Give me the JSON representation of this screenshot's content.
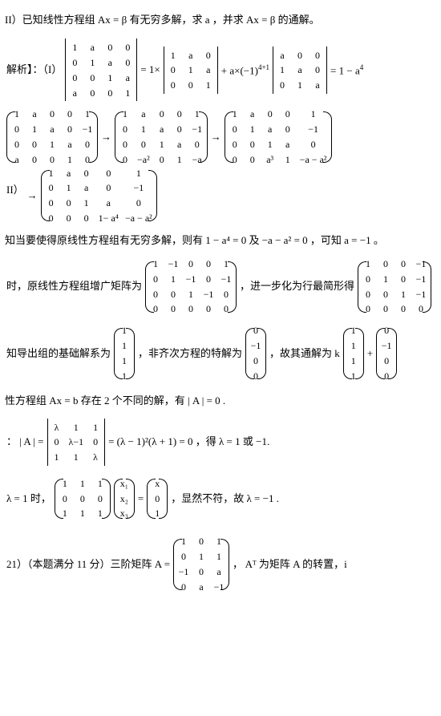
{
  "p1": "II）已知线性方程组 Ax = β 有无穷多解，求 a ，并求 Ax = β 的通解。",
  "p2a": "解析】：（I）",
  "p2b": "= 1×",
  "p2c": "+ a×(−1)",
  "p2c_sup": "4+1",
  "p2d": "= 1 − a",
  "p2d_sup": "4",
  "M1": [
    [
      "1",
      "a",
      "0",
      "0"
    ],
    [
      "0",
      "1",
      "a",
      "0"
    ],
    [
      "0",
      "0",
      "1",
      "a"
    ],
    [
      "a",
      "0",
      "0",
      "1"
    ]
  ],
  "M2": [
    [
      "1",
      "a",
      "0"
    ],
    [
      "0",
      "1",
      "a"
    ],
    [
      "0",
      "0",
      "1"
    ]
  ],
  "M3": [
    [
      "a",
      "0",
      "0"
    ],
    [
      "1",
      "a",
      "0"
    ],
    [
      "0",
      "1",
      "a"
    ]
  ],
  "p3": "II）",
  "arrow": "→",
  "A1": [
    [
      "1",
      "a",
      "0",
      "0",
      "1"
    ],
    [
      "0",
      "1",
      "a",
      "0",
      "−1"
    ],
    [
      "0",
      "0",
      "1",
      "a",
      "0"
    ],
    [
      "a",
      "0",
      "0",
      "1",
      "0"
    ]
  ],
  "A2": [
    [
      "1",
      "a",
      "0",
      "0",
      "1"
    ],
    [
      "0",
      "1",
      "a",
      "0",
      "−1"
    ],
    [
      "0",
      "0",
      "1",
      "a",
      "0"
    ],
    [
      "0",
      "−a²",
      "0",
      "1",
      "−a"
    ]
  ],
  "A3": [
    [
      "1",
      "a",
      "0",
      "0",
      "1"
    ],
    [
      "0",
      "1",
      "a",
      "0",
      "−1"
    ],
    [
      "0",
      "0",
      "1",
      "a",
      "0"
    ],
    [
      "0",
      "0",
      "a³",
      "1",
      "−a − a²"
    ]
  ],
  "A4": [
    [
      "1",
      "a",
      "0",
      "0",
      "1"
    ],
    [
      "0",
      "1",
      "a",
      "0",
      "−1"
    ],
    [
      "0",
      "0",
      "1",
      "a",
      "0"
    ],
    [
      "0",
      "0",
      "0",
      "1− a⁴",
      "−a − a²"
    ]
  ],
  "p4": "知当要使得原线性方程组有无穷多解，则有 1 − a⁴ = 0 及 −a − a² = 0 ，可知 a = −1 。",
  "p5a": "时，原线性方程组增广矩阵为",
  "p5b": "，进一步化为行最简形得",
  "B1": [
    [
      "1",
      "−1",
      "0",
      "0",
      "1"
    ],
    [
      "0",
      "1",
      "−1",
      "0",
      "−1"
    ],
    [
      "0",
      "0",
      "1",
      "−1",
      "0"
    ],
    [
      "0",
      "0",
      "0",
      "0",
      "0"
    ]
  ],
  "B2": [
    [
      "1",
      "0",
      "0",
      "−1"
    ],
    [
      "0",
      "1",
      "0",
      "−1"
    ],
    [
      "0",
      "0",
      "1",
      "−1"
    ],
    [
      "0",
      "0",
      "0",
      "0"
    ]
  ],
  "p6a": "知导出组的基础解系为",
  "p6b": "，非齐次方程的特解为",
  "p6c": "，故其通解为 k",
  "p6d": "+",
  "V1": [
    [
      "1"
    ],
    [
      "1"
    ],
    [
      "1"
    ],
    [
      "1"
    ]
  ],
  "V2": [
    [
      "0"
    ],
    [
      "−1"
    ],
    [
      "0"
    ],
    [
      "0"
    ]
  ],
  "V3": [
    [
      "1"
    ],
    [
      "1"
    ],
    [
      "1"
    ],
    [
      "1"
    ]
  ],
  "V4": [
    [
      "0"
    ],
    [
      "−1"
    ],
    [
      "0"
    ],
    [
      "0"
    ]
  ],
  "p7": "性方程组 Ax = b 存在 2 个不同的解，有 | A | = 0 .",
  "p8a": "：   | A | =",
  "p8b": "= (λ − 1)²(λ + 1) = 0 ，得 λ = 1 或 −1.",
  "D1": [
    [
      "λ",
      "1",
      "1"
    ],
    [
      "0",
      "λ−1",
      "0"
    ],
    [
      "1",
      "1",
      "λ"
    ]
  ],
  "p9a": "λ = 1 时，",
  "p9b": "=",
  "p9c": "，显然不符，故 λ = −1 .",
  "E1": [
    [
      "1",
      "1",
      "1"
    ],
    [
      "0",
      "0",
      "0"
    ],
    [
      "1",
      "1",
      "1"
    ]
  ],
  "E2": [
    [
      "x₁"
    ],
    [
      "x₂"
    ],
    [
      "x₃"
    ]
  ],
  "E3": [
    [
      "x"
    ],
    [
      "0"
    ],
    [
      "1"
    ]
  ],
  "p10a": "21）（本题满分 11 分）三阶矩阵 A =",
  "p10b": "， Aᵀ 为矩阵 A 的转置，i",
  "F1": [
    [
      "1",
      "0",
      "1"
    ],
    [
      "0",
      "1",
      "1"
    ],
    [
      "−1",
      "0",
      "a"
    ],
    [
      "0",
      "a",
      "−1"
    ]
  ]
}
